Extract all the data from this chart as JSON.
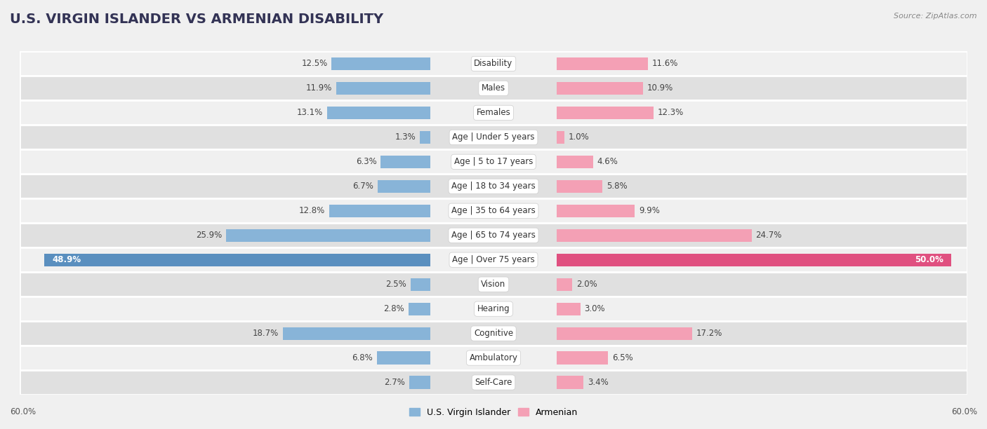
{
  "title": "U.S. VIRGIN ISLANDER VS ARMENIAN DISABILITY",
  "source": "Source: ZipAtlas.com",
  "categories": [
    "Disability",
    "Males",
    "Females",
    "Age | Under 5 years",
    "Age | 5 to 17 years",
    "Age | 18 to 34 years",
    "Age | 35 to 64 years",
    "Age | 65 to 74 years",
    "Age | Over 75 years",
    "Vision",
    "Hearing",
    "Cognitive",
    "Ambulatory",
    "Self-Care"
  ],
  "left_values": [
    12.5,
    11.9,
    13.1,
    1.3,
    6.3,
    6.7,
    12.8,
    25.9,
    48.9,
    2.5,
    2.8,
    18.7,
    6.8,
    2.7
  ],
  "right_values": [
    11.6,
    10.9,
    12.3,
    1.0,
    4.6,
    5.8,
    9.9,
    24.7,
    50.0,
    2.0,
    3.0,
    17.2,
    6.5,
    3.4
  ],
  "left_color": "#88b4d8",
  "right_color": "#f4a0b5",
  "left_color_dark": "#5a8fbf",
  "right_color_dark": "#e05080",
  "left_label": "U.S. Virgin Islander",
  "right_label": "Armenian",
  "max_value": 60.0,
  "background_color": "#f0f0f0",
  "row_bg_light": "#f0f0f0",
  "row_bg_dark": "#e0e0e0",
  "title_fontsize": 14,
  "label_fontsize": 8.5,
  "value_fontsize": 8.5,
  "bar_height": 0.52
}
